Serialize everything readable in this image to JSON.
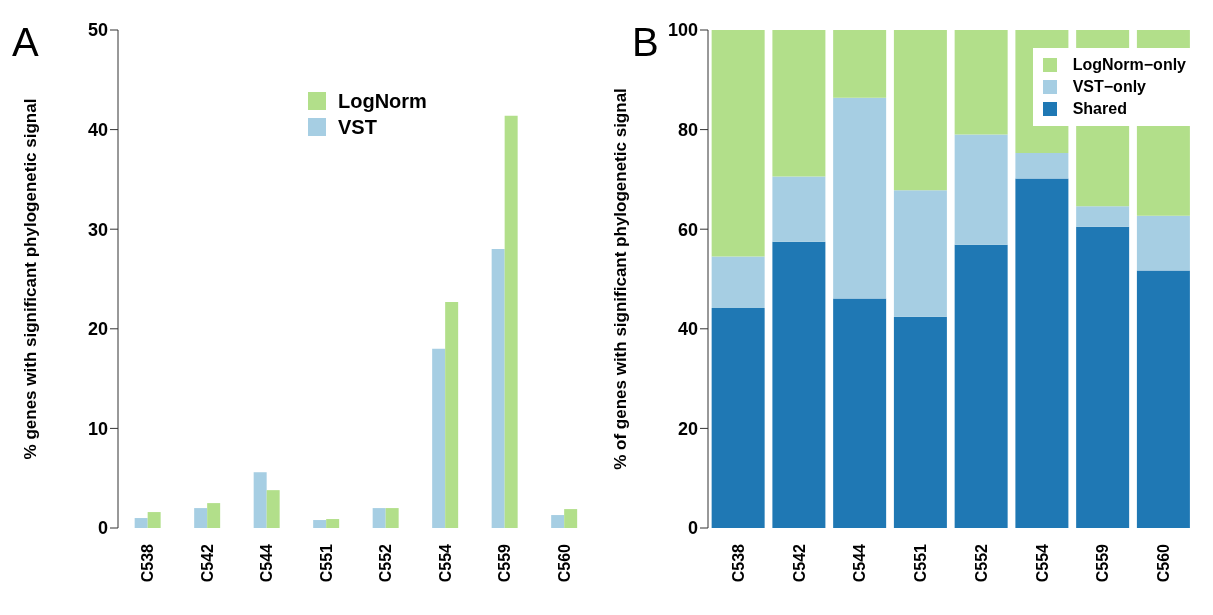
{
  "chart_data": [
    {
      "type": "bar",
      "title": "A",
      "ylabel": "% genes with significant phylogenetic signal",
      "categories": [
        "C538",
        "C542",
        "C544",
        "C551",
        "C552",
        "C554",
        "C559",
        "C560"
      ],
      "series": [
        {
          "name": "VST",
          "color": "#a6cee3",
          "values": [
            1.0,
            2.0,
            5.6,
            0.8,
            2.0,
            18.0,
            28.0,
            1.3
          ]
        },
        {
          "name": "LogNorm",
          "color": "#b2df8a",
          "values": [
            1.6,
            2.5,
            3.8,
            0.9,
            2.0,
            22.7,
            41.4,
            1.9
          ]
        }
      ],
      "ylim": [
        0,
        50
      ],
      "yticks": [
        0,
        10,
        20,
        30,
        40,
        50
      ],
      "legend": "top"
    },
    {
      "type": "bar",
      "title": "B",
      "ylabel": "% of genes with significant phylogenetic signal",
      "categories": [
        "C538",
        "C542",
        "C544",
        "C551",
        "C552",
        "C554",
        "C559",
        "C560"
      ],
      "stacked": true,
      "series": [
        {
          "name": "Shared",
          "color": "#1f78b4",
          "values": [
            44.2,
            57.5,
            46.1,
            42.4,
            56.9,
            70.2,
            60.5,
            51.7
          ]
        },
        {
          "name": "VST−only",
          "color": "#a6cee3",
          "values": [
            10.3,
            13.1,
            40.3,
            25.4,
            22.1,
            5.1,
            4.1,
            11.0
          ]
        },
        {
          "name": "LogNorm−only",
          "color": "#b2df8a",
          "values": [
            45.5,
            29.4,
            13.6,
            32.2,
            21.0,
            24.7,
            35.4,
            37.3
          ]
        }
      ],
      "ylim": [
        0,
        100
      ],
      "yticks": [
        0,
        20,
        40,
        60,
        80,
        100
      ],
      "legend": "top right"
    }
  ]
}
